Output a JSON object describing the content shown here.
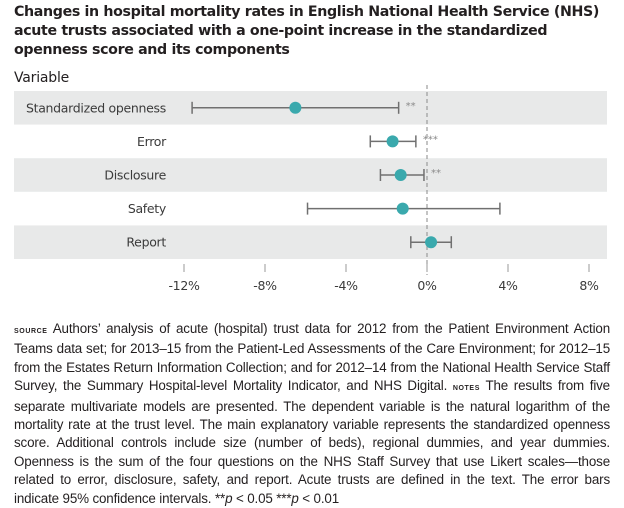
{
  "chart_data": {
    "type": "forest-plot",
    "title": "Changes in hospital mortality rates in English National Health Service (NHS) acute trusts associated with a one-point increase in the standardized openness score and its components",
    "row_header": "Variable",
    "xlabel": "",
    "xlim": [
      -12,
      8
    ],
    "x_unit": "%",
    "x_ticks": [
      -12,
      -8,
      -4,
      0,
      4,
      8
    ],
    "x_tick_labels": [
      "-12%",
      "-8%",
      "-4%",
      "0%",
      "4%",
      "8%"
    ],
    "reference_line": 0,
    "grid": false,
    "series": [
      {
        "name": "Standardized openness",
        "estimate": -6.5,
        "ci_low": -11.6,
        "ci_high": -1.4,
        "significance": "**"
      },
      {
        "name": "Error",
        "estimate": -1.7,
        "ci_low": -2.8,
        "ci_high": -0.55,
        "significance": "***"
      },
      {
        "name": "Disclosure",
        "estimate": -1.3,
        "ci_low": -2.3,
        "ci_high": -0.15,
        "significance": "**"
      },
      {
        "name": "Safety",
        "estimate": -1.2,
        "ci_low": -5.9,
        "ci_high": 3.6,
        "significance": ""
      },
      {
        "name": "Report",
        "estimate": 0.2,
        "ci_low": -0.8,
        "ci_high": 1.2,
        "significance": ""
      }
    ],
    "colors": {
      "point": "#3aa9ad",
      "whisker": "#707070",
      "band": "#e8e9e9",
      "reference": "#8a8a8a"
    }
  },
  "notes": {
    "source_label": "source",
    "source_text": "Authors’ analysis of acute (hospital) trust data for 2012 from the Patient Environment Action Teams data set; for 2013–15 from the Patient-Led Assessments of the Care Environment; for 2012–15 from the Estates Return Information Collection; and for 2012–14 from the National Health Service Staff Survey, the Summary Hospital-level Mortality Indicator, and NHS Digital.",
    "notes_label": "notes",
    "notes_text": "The results from five separate multivariate models are presented. The dependent variable is the natural logarithm of the mortality rate at the trust level. The main explanatory variable represents the standardized openness score. Additional controls include size (number of beds), regional dummies, and year dummies. Openness is the sum of the four questions on the NHS Staff Survey that use Likert scales—those related to error, disclosure, safety, and report. Acute trusts are defined in the text. The error bars indicate 95% confidence intervals.",
    "sig_1_stars": "**",
    "sig_1_p": "p",
    "sig_1_rest": " < 0.05 ",
    "sig_2_stars": "***",
    "sig_2_p": "p",
    "sig_2_rest": " < 0.01"
  }
}
